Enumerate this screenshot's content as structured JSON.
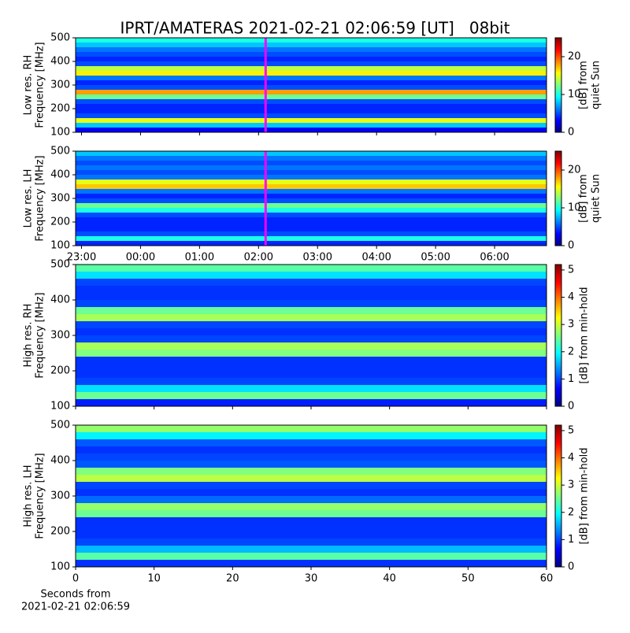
{
  "title": "IPRT/AMATERAS 2021-02-21 02:06:59 [UT]   08bit",
  "chart_data": [
    {
      "type": "heatmap",
      "ylabel": [
        "Low res. RH",
        "Frequency [MHz]"
      ],
      "colormap": "jet",
      "xlim": [
        22.9,
        30.88
      ],
      "xticks": [
        23,
        24,
        25,
        26,
        27,
        28,
        29,
        30
      ],
      "marker_x": 26.12,
      "marker_color": "#ff00ff",
      "ylim": [
        100,
        500
      ],
      "yticks": [
        100,
        200,
        300,
        400,
        500
      ],
      "ybins": [
        100,
        120,
        140,
        160,
        180,
        200,
        220,
        240,
        260,
        280,
        300,
        320,
        340,
        360,
        380,
        400,
        420,
        440,
        460,
        480,
        500
      ],
      "values": [
        3,
        8,
        15,
        5,
        4,
        4,
        5,
        12,
        18,
        5,
        4,
        6,
        16,
        14,
        5,
        4,
        5,
        6,
        8,
        10
      ],
      "clim": [
        0,
        25
      ],
      "cticks": [
        0,
        10,
        20
      ],
      "colorbar_label": [
        "[dB] from",
        "quiet Sun"
      ]
    },
    {
      "type": "heatmap",
      "ylabel": [
        "Low res. LH",
        "Frequency [MHz]"
      ],
      "colormap": "jet",
      "xlim": [
        22.9,
        30.88
      ],
      "xticks": [
        {
          "value": 23,
          "label": "23:00"
        },
        {
          "value": 24,
          "label": "00:00"
        },
        {
          "value": 25,
          "label": "01:00"
        },
        {
          "value": 26,
          "label": "02:00"
        },
        {
          "value": 27,
          "label": "03:00"
        },
        {
          "value": 28,
          "label": "04:00"
        },
        {
          "value": 29,
          "label": "05:00"
        },
        {
          "value": 30,
          "label": "06:00"
        }
      ],
      "marker_x": 26.12,
      "marker_color": "#ff00ff",
      "ylim": [
        100,
        500
      ],
      "yticks": [
        100,
        200,
        300,
        400,
        500
      ],
      "ybins": [
        100,
        120,
        140,
        160,
        180,
        200,
        220,
        240,
        260,
        280,
        300,
        320,
        340,
        360,
        380,
        400,
        420,
        440,
        460,
        480,
        500
      ],
      "values": [
        4,
        10,
        5,
        4,
        4,
        4,
        5,
        10,
        12,
        5,
        4,
        6,
        17,
        15,
        6,
        5,
        6,
        5,
        6,
        8
      ],
      "clim": [
        0,
        25
      ],
      "cticks": [
        0,
        10,
        20
      ],
      "colorbar_label": [
        "[dB] from",
        "quiet Sun"
      ]
    },
    {
      "type": "heatmap",
      "ylabel": [
        "High res. RH",
        "Frequency [MHz]"
      ],
      "colormap": "jet",
      "xlim": [
        0,
        60
      ],
      "xticks": [
        0,
        10,
        20,
        30,
        40,
        50,
        60
      ],
      "ylim": [
        100,
        500
      ],
      "yticks": [
        100,
        200,
        300,
        400,
        500
      ],
      "ybins": [
        100,
        120,
        140,
        160,
        180,
        200,
        220,
        240,
        260,
        280,
        300,
        320,
        340,
        360,
        380,
        400,
        420,
        440,
        460,
        480,
        500
      ],
      "values": [
        0.8,
        2.5,
        1.8,
        1,
        0.9,
        0.9,
        0.9,
        2.6,
        2.8,
        1,
        0.9,
        1,
        2.8,
        2.5,
        1,
        0.9,
        0.9,
        1,
        1.8,
        2.4
      ],
      "clim": [
        0,
        5.2
      ],
      "cticks": [
        0,
        1,
        2,
        3,
        4,
        5
      ],
      "colorbar_label": [
        "[dB] from min-hold"
      ]
    },
    {
      "type": "heatmap",
      "ylabel": [
        "High res. LH",
        "Frequency [MHz]"
      ],
      "colormap": "jet",
      "xlim": [
        0,
        60
      ],
      "xticks": [
        0,
        10,
        20,
        30,
        40,
        50,
        60
      ],
      "xlabel": [
        "Seconds from",
        "2021-02-21 02:06:59"
      ],
      "ylim": [
        100,
        500
      ],
      "yticks": [
        100,
        200,
        300,
        400,
        500
      ],
      "ybins": [
        100,
        120,
        140,
        160,
        180,
        200,
        220,
        240,
        260,
        280,
        300,
        320,
        340,
        360,
        380,
        400,
        420,
        440,
        460,
        480,
        500
      ],
      "values": [
        0.9,
        2.4,
        1.6,
        1,
        0.9,
        0.9,
        0.9,
        2.5,
        2.7,
        1.2,
        0.9,
        1,
        2.9,
        2.6,
        1.1,
        1,
        0.9,
        1.1,
        1.9,
        2.7
      ],
      "clim": [
        0,
        5.2
      ],
      "cticks": [
        0,
        1,
        2,
        3,
        4,
        5
      ],
      "colorbar_label": [
        "[dB] from min-hold"
      ]
    }
  ]
}
